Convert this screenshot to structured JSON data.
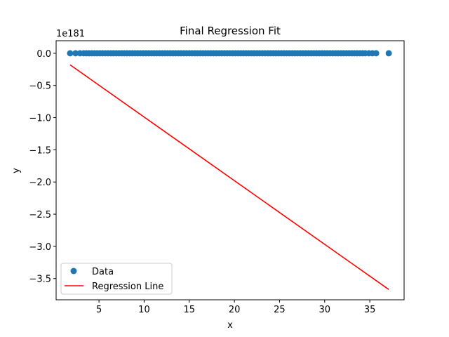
{
  "chart_data": {
    "type": "scatter",
    "title": "Final Regression Fit",
    "xlabel": "x",
    "ylabel": "y",
    "offset_label": "1e181",
    "xlim": [
      0.25,
      38.8
    ],
    "ylim": [
      -3.83,
      0.195
    ],
    "xticks": [
      5,
      10,
      15,
      20,
      25,
      30,
      35
    ],
    "xtick_labels": [
      "5",
      "10",
      "15",
      "20",
      "25",
      "30",
      "35"
    ],
    "yticks": [
      0.0,
      -0.5,
      -1.0,
      -1.5,
      -2.0,
      -2.5,
      -3.0,
      -3.5
    ],
    "ytick_labels": [
      "0.0",
      "−0.5",
      "−1.0",
      "−1.5",
      "−2.0",
      "−2.5",
      "−3.0",
      "−3.5"
    ],
    "grid": false,
    "legend": {
      "position": "lower-left",
      "entries": [
        {
          "label": "Data",
          "marker": "circle",
          "color": "#1f77b4"
        },
        {
          "label": "Regression Line",
          "marker": "line",
          "color": "#ff0000"
        }
      ]
    },
    "series": [
      {
        "name": "Data",
        "kind": "scatter",
        "color": "#1f77b4",
        "x": [
          1.8,
          2.4,
          2.9,
          3.3,
          3.6,
          3.9,
          4.2,
          4.5,
          4.8,
          5.1,
          5.4,
          5.7,
          6.0,
          6.3,
          6.6,
          6.9,
          7.2,
          7.5,
          7.8,
          8.1,
          8.4,
          8.7,
          9.0,
          9.3,
          9.6,
          9.9,
          10.2,
          10.5,
          10.8,
          11.1,
          11.4,
          11.7,
          12.0,
          12.3,
          12.6,
          12.9,
          13.2,
          13.5,
          13.8,
          14.1,
          14.4,
          14.7,
          15.0,
          15.3,
          15.6,
          15.9,
          16.2,
          16.5,
          16.8,
          17.1,
          17.4,
          17.7,
          18.0,
          18.3,
          18.6,
          18.9,
          19.2,
          19.5,
          19.8,
          20.1,
          20.4,
          20.7,
          21.0,
          21.3,
          21.6,
          21.9,
          22.2,
          22.5,
          22.8,
          23.1,
          23.4,
          23.7,
          24.0,
          24.3,
          24.6,
          24.9,
          25.2,
          25.5,
          25.8,
          26.1,
          26.4,
          26.7,
          27.0,
          27.3,
          27.6,
          27.9,
          28.2,
          28.5,
          28.8,
          29.1,
          29.4,
          29.7,
          30.0,
          30.3,
          30.6,
          30.9,
          31.2,
          31.5,
          31.8,
          32.1,
          32.4,
          32.7,
          33.0,
          33.3,
          33.6,
          33.9,
          34.2,
          34.5,
          34.9,
          35.3,
          35.7,
          37.1
        ],
        "y_constant": 0.0
      },
      {
        "name": "Regression Line",
        "kind": "line",
        "color": "#ff0000",
        "x": [
          1.8,
          37.1
        ],
        "y": [
          -0.18,
          -3.67
        ]
      }
    ]
  }
}
